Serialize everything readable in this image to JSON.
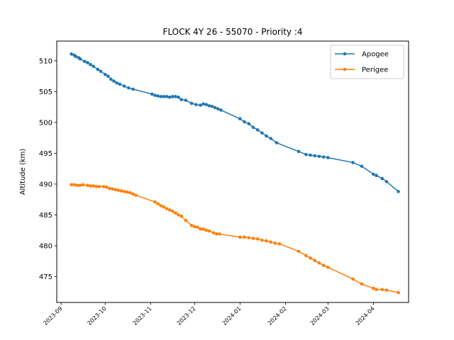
{
  "chart_data": {
    "type": "line",
    "title": "FLOCK 4Y 26 - 55070 - Priority :4",
    "xlabel": "",
    "ylabel": "Altitude (km)",
    "xlim": [
      "2023-08-29",
      "2024-04-25"
    ],
    "ylim": [
      470.8,
      513.2
    ],
    "x_ticks": [
      "2023-09",
      "2023-10",
      "2023-11",
      "2023-12",
      "2024-01",
      "2024-02",
      "2024-03",
      "2024-04"
    ],
    "y_ticks": [
      475,
      480,
      485,
      490,
      495,
      500,
      505,
      510
    ],
    "grid": false,
    "legend_position": "top-right",
    "series": [
      {
        "name": "Apogee",
        "color": "#1f77b4",
        "points": [
          [
            "2023-09-08",
            511.1
          ],
          [
            "2023-09-10",
            510.9
          ],
          [
            "2023-09-11",
            510.7
          ],
          [
            "2023-09-13",
            510.5
          ],
          [
            "2023-09-14",
            510.3
          ],
          [
            "2023-09-17",
            509.9
          ],
          [
            "2023-09-19",
            509.7
          ],
          [
            "2023-09-21",
            509.4
          ],
          [
            "2023-09-23",
            509.1
          ],
          [
            "2023-09-26",
            508.6
          ],
          [
            "2023-09-28",
            508.3
          ],
          [
            "2023-10-01",
            507.8
          ],
          [
            "2023-10-03",
            507.5
          ],
          [
            "2023-10-05",
            507.0
          ],
          [
            "2023-10-07",
            506.7
          ],
          [
            "2023-10-09",
            506.4
          ],
          [
            "2023-10-11",
            506.2
          ],
          [
            "2023-10-14",
            505.9
          ],
          [
            "2023-10-17",
            505.6
          ],
          [
            "2023-10-20",
            505.4
          ],
          [
            "2023-11-02",
            504.6
          ],
          [
            "2023-11-04",
            504.4
          ],
          [
            "2023-11-06",
            504.3
          ],
          [
            "2023-11-08",
            504.2
          ],
          [
            "2023-11-10",
            504.2
          ],
          [
            "2023-11-12",
            504.2
          ],
          [
            "2023-11-14",
            504.1
          ],
          [
            "2023-11-16",
            504.2
          ],
          [
            "2023-11-18",
            504.2
          ],
          [
            "2023-11-20",
            504.1
          ],
          [
            "2023-11-22",
            503.7
          ],
          [
            "2023-11-25",
            503.6
          ],
          [
            "2023-11-29",
            503.1
          ],
          [
            "2023-12-02",
            502.9
          ],
          [
            "2023-12-05",
            502.8
          ],
          [
            "2023-12-07",
            503.0
          ],
          [
            "2023-12-09",
            502.9
          ],
          [
            "2023-12-11",
            502.7
          ],
          [
            "2023-12-13",
            502.6
          ],
          [
            "2023-12-15",
            502.4
          ],
          [
            "2023-12-17",
            502.2
          ],
          [
            "2023-12-19",
            502.0
          ],
          [
            "2024-01-01",
            500.6
          ],
          [
            "2024-01-04",
            500.1
          ],
          [
            "2024-01-07",
            499.8
          ],
          [
            "2024-01-10",
            499.2
          ],
          [
            "2024-01-13",
            498.8
          ],
          [
            "2024-01-16",
            498.3
          ],
          [
            "2024-01-19",
            497.8
          ],
          [
            "2024-01-22",
            497.4
          ],
          [
            "2024-01-26",
            496.7
          ],
          [
            "2024-02-10",
            495.3
          ],
          [
            "2024-02-15",
            494.8
          ],
          [
            "2024-02-18",
            494.7
          ],
          [
            "2024-02-21",
            494.6
          ],
          [
            "2024-02-24",
            494.5
          ],
          [
            "2024-02-27",
            494.4
          ],
          [
            "2024-03-01",
            494.3
          ],
          [
            "2024-03-18",
            493.5
          ],
          [
            "2024-03-24",
            492.9
          ],
          [
            "2024-04-01",
            491.6
          ],
          [
            "2024-04-03",
            491.4
          ],
          [
            "2024-04-07",
            490.9
          ],
          [
            "2024-04-10",
            490.4
          ],
          [
            "2024-04-18",
            488.8
          ]
        ]
      },
      {
        "name": "Perigee",
        "color": "#ff7f0e",
        "points": [
          [
            "2023-09-08",
            489.9
          ],
          [
            "2023-09-10",
            489.9
          ],
          [
            "2023-09-12",
            489.8
          ],
          [
            "2023-09-14",
            489.8
          ],
          [
            "2023-09-16",
            489.9
          ],
          [
            "2023-09-19",
            489.8
          ],
          [
            "2023-09-21",
            489.7
          ],
          [
            "2023-09-23",
            489.7
          ],
          [
            "2023-09-25",
            489.6
          ],
          [
            "2023-09-27",
            489.6
          ],
          [
            "2023-09-30",
            489.6
          ],
          [
            "2023-10-02",
            489.5
          ],
          [
            "2023-10-04",
            489.3
          ],
          [
            "2023-10-06",
            489.2
          ],
          [
            "2023-10-08",
            489.1
          ],
          [
            "2023-10-10",
            489.0
          ],
          [
            "2023-10-12",
            488.9
          ],
          [
            "2023-10-14",
            488.8
          ],
          [
            "2023-10-16",
            488.7
          ],
          [
            "2023-10-18",
            488.6
          ],
          [
            "2023-10-20",
            488.4
          ],
          [
            "2023-10-22",
            488.2
          ],
          [
            "2023-11-04",
            487.1
          ],
          [
            "2023-11-06",
            486.8
          ],
          [
            "2023-11-08",
            486.5
          ],
          [
            "2023-11-10",
            486.3
          ],
          [
            "2023-11-12",
            486.0
          ],
          [
            "2023-11-14",
            485.8
          ],
          [
            "2023-11-16",
            485.6
          ],
          [
            "2023-11-18",
            485.3
          ],
          [
            "2023-11-20",
            485.0
          ],
          [
            "2023-11-22",
            484.8
          ],
          [
            "2023-11-25",
            484.1
          ],
          [
            "2023-11-29",
            483.3
          ],
          [
            "2023-12-01",
            483.1
          ],
          [
            "2023-12-03",
            483.0
          ],
          [
            "2023-12-05",
            482.7
          ],
          [
            "2023-12-07",
            482.7
          ],
          [
            "2023-12-09",
            482.5
          ],
          [
            "2023-12-11",
            482.4
          ],
          [
            "2023-12-14",
            482.1
          ],
          [
            "2023-12-16",
            481.9
          ],
          [
            "2023-12-18",
            481.9
          ],
          [
            "2024-01-01",
            481.4
          ],
          [
            "2024-01-04",
            481.4
          ],
          [
            "2024-01-07",
            481.3
          ],
          [
            "2024-01-10",
            481.2
          ],
          [
            "2024-01-13",
            481.1
          ],
          [
            "2024-01-16",
            480.9
          ],
          [
            "2024-01-19",
            480.8
          ],
          [
            "2024-01-22",
            480.6
          ],
          [
            "2024-01-25",
            480.4
          ],
          [
            "2024-01-28",
            480.3
          ],
          [
            "2024-02-10",
            479.1
          ],
          [
            "2024-02-15",
            478.4
          ],
          [
            "2024-02-18",
            478.0
          ],
          [
            "2024-02-21",
            477.6
          ],
          [
            "2024-02-24",
            477.2
          ],
          [
            "2024-02-27",
            476.8
          ],
          [
            "2024-03-01",
            476.5
          ],
          [
            "2024-03-18",
            474.6
          ],
          [
            "2024-03-24",
            473.8
          ],
          [
            "2024-04-01",
            473.1
          ],
          [
            "2024-04-03",
            472.9
          ],
          [
            "2024-04-07",
            472.9
          ],
          [
            "2024-04-10",
            472.8
          ],
          [
            "2024-04-18",
            472.4
          ]
        ]
      }
    ]
  }
}
